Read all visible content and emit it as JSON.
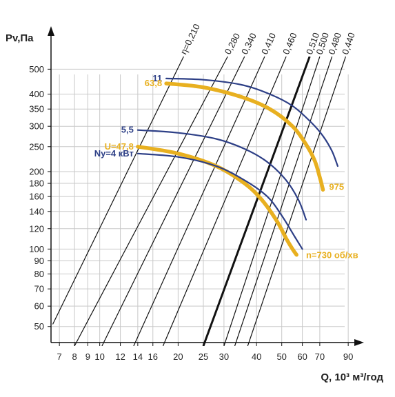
{
  "colors": {
    "blue": "#2d3f86",
    "gold": "#e8b020",
    "grid": "#c8c8c8",
    "line": "#111111"
  },
  "chart_data": {
    "type": "line",
    "title": "",
    "xlabel": "Q, 10³ м³/год",
    "ylabel": "Pv,Па",
    "x_scale": "log",
    "y_scale": "log",
    "xlim": [
      6.5,
      95
    ],
    "ylim": [
      42,
      560
    ],
    "grid": true,
    "x_ticks": [
      7,
      8,
      9,
      10,
      12,
      14,
      16,
      20,
      25,
      30,
      40,
      50,
      60,
      70,
      90
    ],
    "y_ticks": [
      50,
      60,
      70,
      80,
      90,
      100,
      120,
      140,
      160,
      180,
      200,
      250,
      300,
      350,
      400,
      500
    ],
    "efficiency_lines": [
      {
        "label": "η=0,210",
        "x": [
          6.6,
          21
        ],
        "y": [
          51,
          560
        ],
        "bold": false
      },
      {
        "label": "0,280",
        "x": [
          8.0,
          31
        ],
        "y": [
          42,
          560
        ],
        "bold": false
      },
      {
        "label": "0,340",
        "x": [
          10.2,
          36
        ],
        "y": [
          42,
          560
        ],
        "bold": false
      },
      {
        "label": "0,410",
        "x": [
          13.5,
          43
        ],
        "y": [
          42,
          560
        ],
        "bold": false
      },
      {
        "label": "0,460",
        "x": [
          17.5,
          52
        ],
        "y": [
          42,
          560
        ],
        "bold": false
      },
      {
        "label": "0,510",
        "x": [
          25,
          64
        ],
        "y": [
          42,
          560
        ],
        "bold": true
      },
      {
        "label": "0,500",
        "x": [
          30,
          70
        ],
        "y": [
          42,
          560
        ],
        "bold": false
      },
      {
        "label": "0,480",
        "x": [
          33,
          78
        ],
        "y": [
          42,
          560
        ],
        "bold": false
      },
      {
        "label": "0,440",
        "x": [
          37,
          88
        ],
        "y": [
          42,
          560
        ],
        "bold": false
      }
    ],
    "series": [
      {
        "name": "11",
        "group": "blue",
        "x": [
          18,
          25,
          35,
          45,
          55,
          65,
          72,
          78,
          82
        ],
        "y": [
          460,
          455,
          435,
          400,
          360,
          310,
          275,
          240,
          210
        ]
      },
      {
        "name": "63,8",
        "group": "gold",
        "x": [
          18,
          25,
          35,
          45,
          55,
          62,
          67,
          70,
          72
        ],
        "y": [
          440,
          425,
          390,
          350,
          300,
          255,
          220,
          190,
          170
        ]
      },
      {
        "name": "5,5",
        "group": "blue",
        "x": [
          14,
          20,
          28,
          36,
          44,
          52,
          58,
          62
        ],
        "y": [
          290,
          283,
          268,
          245,
          218,
          185,
          155,
          130
        ]
      },
      {
        "name": "U=47,8",
        "group": "gold",
        "x": [
          14,
          20,
          28,
          36,
          42,
          48,
          52,
          55,
          57
        ],
        "y": [
          250,
          235,
          210,
          180,
          155,
          128,
          110,
          100,
          95
        ]
      },
      {
        "name": "Nу=4 кВт",
        "group": "blue",
        "x": [
          14,
          20,
          28,
          36,
          44,
          50,
          56,
          60
        ],
        "y": [
          235,
          228,
          210,
          185,
          160,
          135,
          112,
          100
        ]
      }
    ],
    "annotations": [
      {
        "text": "975",
        "x": 76,
        "y": 175,
        "group": "gold"
      },
      {
        "text": "n=730 об/хв",
        "x": 62,
        "y": 95,
        "group": "gold"
      }
    ]
  }
}
